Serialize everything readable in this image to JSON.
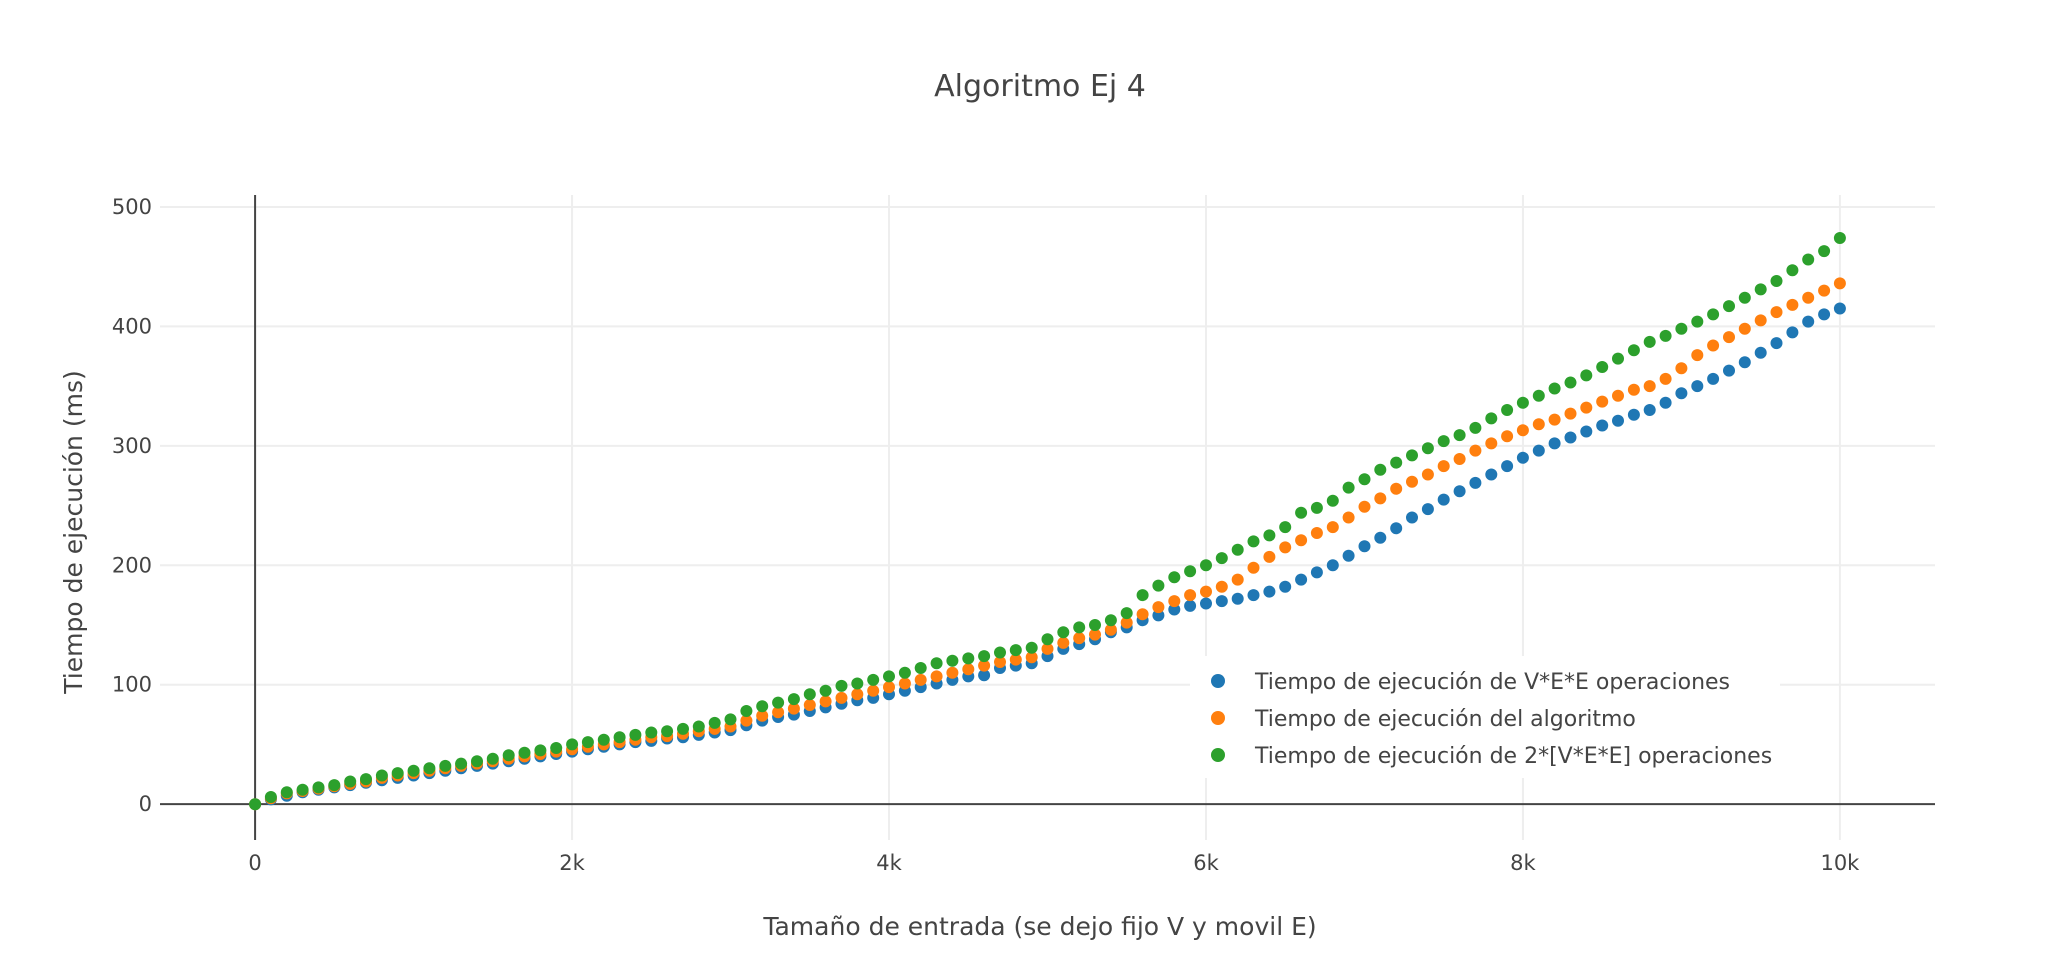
{
  "chart_data": {
    "type": "scatter",
    "title": "Algoritmo Ej 4",
    "xlabel": "Tamaño de entrada (se dejo fijo V y movil E)",
    "ylabel": "Tiempo de ejecución (ms)",
    "xlim": [
      -600,
      10600
    ],
    "ylim": [
      -30,
      510
    ],
    "xticks": [
      0,
      2000,
      4000,
      6000,
      8000,
      10000
    ],
    "xtick_labels": [
      "0",
      "2k",
      "4k",
      "6k",
      "8k",
      "10k"
    ],
    "yticks": [
      0,
      100,
      200,
      300,
      400,
      500
    ],
    "ytick_labels": [
      "0",
      "100",
      "200",
      "300",
      "400",
      "500"
    ],
    "grid": true,
    "legend_position": "bottom-right",
    "x": [
      0,
      100,
      200,
      300,
      400,
      500,
      600,
      700,
      800,
      900,
      1000,
      1100,
      1200,
      1300,
      1400,
      1500,
      1600,
      1700,
      1800,
      1900,
      2000,
      2100,
      2200,
      2300,
      2400,
      2500,
      2600,
      2700,
      2800,
      2900,
      3000,
      3100,
      3200,
      3300,
      3400,
      3500,
      3600,
      3700,
      3800,
      3900,
      4000,
      4100,
      4200,
      4300,
      4400,
      4500,
      4600,
      4700,
      4800,
      4900,
      5000,
      5100,
      5200,
      5300,
      5400,
      5500,
      5600,
      5700,
      5800,
      5900,
      6000,
      6100,
      6200,
      6300,
      6400,
      6500,
      6600,
      6700,
      6800,
      6900,
      7000,
      7100,
      7200,
      7300,
      7400,
      7500,
      7600,
      7700,
      7800,
      7900,
      8000,
      8100,
      8200,
      8300,
      8400,
      8500,
      8600,
      8700,
      8800,
      8900,
      9000,
      9100,
      9200,
      9300,
      9400,
      9500,
      9600,
      9700,
      9800,
      9900,
      10000
    ],
    "series": [
      {
        "name": "Tiempo de ejecución de V*E*E operaciones",
        "color": "#1f77b4",
        "values": [
          0,
          4,
          7,
          10,
          12,
          14,
          16,
          18,
          20,
          22,
          24,
          26,
          28,
          30,
          32,
          34,
          36,
          38,
          40,
          42,
          44,
          46,
          48,
          50,
          52,
          53,
          55,
          56,
          58,
          60,
          62,
          66,
          70,
          73,
          75,
          78,
          81,
          84,
          87,
          89,
          92,
          95,
          98,
          101,
          104,
          107,
          108,
          114,
          116,
          118,
          124,
          130,
          134,
          138,
          144,
          148,
          154,
          158,
          163,
          166,
          168,
          170,
          172,
          175,
          178,
          182,
          188,
          194,
          200,
          208,
          216,
          223,
          231,
          240,
          247,
          255,
          262,
          269,
          276,
          283,
          290,
          296,
          302,
          307,
          312,
          317,
          321,
          326,
          330,
          336,
          344,
          350,
          356,
          363,
          370,
          378,
          386,
          395,
          404,
          410,
          415
        ]
      },
      {
        "name": "Tiempo de ejecución del algoritmo",
        "color": "#ff7f0e",
        "values": [
          0,
          5,
          9,
          11,
          13,
          15,
          17,
          19,
          22,
          24,
          26,
          28,
          30,
          32,
          34,
          36,
          38,
          40,
          42,
          44,
          46,
          48,
          50,
          52,
          54,
          56,
          57,
          59,
          61,
          63,
          65,
          70,
          74,
          77,
          80,
          83,
          86,
          89,
          92,
          95,
          98,
          101,
          104,
          107,
          110,
          113,
          116,
          119,
          121,
          123,
          130,
          135,
          139,
          142,
          146,
          152,
          159,
          165,
          170,
          175,
          178,
          182,
          188,
          198,
          207,
          215,
          221,
          227,
          232,
          240,
          249,
          256,
          264,
          270,
          276,
          283,
          289,
          296,
          302,
          308,
          313,
          318,
          322,
          327,
          332,
          337,
          342,
          347,
          350,
          356,
          365,
          376,
          384,
          391,
          398,
          405,
          412,
          418,
          424,
          430,
          436
        ]
      },
      {
        "name": "Tiempo de ejecución de 2*[V*E*E] operaciones",
        "color": "#2ca02c",
        "values": [
          0,
          6,
          10,
          12,
          14,
          16,
          19,
          21,
          24,
          26,
          28,
          30,
          32,
          34,
          36,
          38,
          41,
          43,
          45,
          47,
          50,
          52,
          54,
          56,
          58,
          60,
          61,
          63,
          65,
          68,
          71,
          78,
          82,
          85,
          88,
          92,
          95,
          99,
          101,
          104,
          107,
          110,
          114,
          118,
          120,
          122,
          124,
          127,
          129,
          131,
          138,
          144,
          148,
          150,
          154,
          160,
          175,
          183,
          190,
          195,
          200,
          206,
          213,
          220,
          225,
          232,
          244,
          248,
          254,
          265,
          272,
          280,
          286,
          292,
          298,
          304,
          309,
          315,
          323,
          330,
          336,
          342,
          348,
          353,
          359,
          366,
          373,
          380,
          387,
          392,
          398,
          404,
          410,
          417,
          424,
          431,
          438,
          447,
          456,
          463,
          474
        ]
      }
    ]
  }
}
